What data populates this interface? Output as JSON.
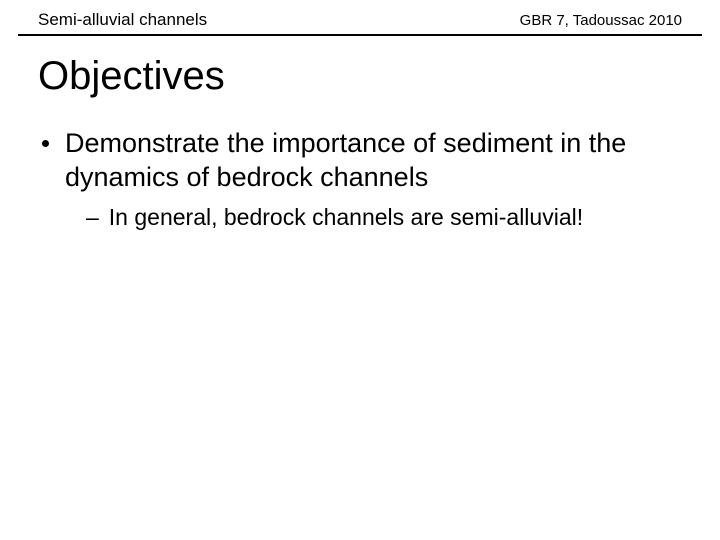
{
  "header": {
    "left": "Semi-alluvial channels",
    "right": "GBR 7, Tadoussac 2010"
  },
  "title": "Objectives",
  "bullets": {
    "l1": {
      "text": "Demonstrate the importance of sediment in the dynamics of bedrock channels"
    },
    "l2": {
      "dash": "–",
      "text": "In general, bedrock channels are semi-alluvial!"
    }
  },
  "styling": {
    "background_color": "#ffffff",
    "text_color": "#000000",
    "rule_color": "#000000",
    "header_left_fontsize": 17,
    "header_right_fontsize": 15,
    "title_fontsize": 40,
    "bullet_l1_fontsize": 27,
    "bullet_l2_fontsize": 23,
    "font_family": "Arial"
  }
}
